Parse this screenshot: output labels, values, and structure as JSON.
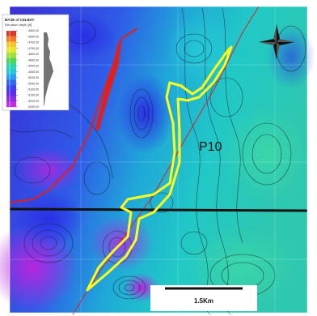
{
  "legend": {
    "title": "BASE of CELBAT",
    "subtitle": "Elevation depth [ft]",
    "ticks": [
      "-4600.00",
      "-4650.00",
      "-4700.00",
      "-4750.00",
      "-4800.00",
      "-4850.00",
      "-4900.00",
      "-4950.00",
      "-5000.00",
      "-5050.00",
      "-5100.00",
      "-5150.00",
      "-5200.00",
      "-5250.00"
    ],
    "colors": [
      "#d9392b",
      "#f07a2a",
      "#f5c42c",
      "#e6e62e",
      "#9fdf3a",
      "#4fd35a",
      "#2fd4a6",
      "#26c6d9",
      "#2a9ef0",
      "#3168f0",
      "#3a3ff0",
      "#5a2ee8",
      "#8a2ee3",
      "#c22ee0"
    ]
  },
  "map": {
    "region_label": "P10",
    "scale_label": "1.5Km",
    "compass_icon": "compass-rose-icon"
  }
}
